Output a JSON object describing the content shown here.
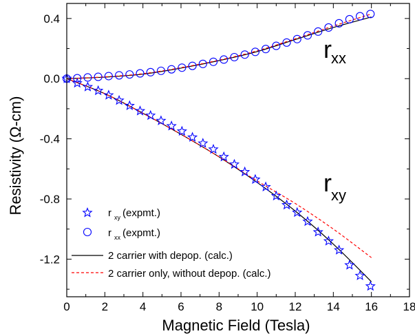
{
  "chart_data": {
    "type": "scatter",
    "xlabel": "Magnetic Field (Tesla)",
    "ylabel": "Resistivity (Ω-cm)",
    "xlim": [
      0,
      18
    ],
    "ylim": [
      -1.45,
      0.5
    ],
    "xticks": [
      "0",
      "2",
      "4",
      "6",
      "8",
      "10",
      "12",
      "14",
      "16",
      "18"
    ],
    "yticks": [
      "0.4",
      "0.0",
      "-0.4",
      "-0.8",
      "-1.2"
    ],
    "grid": false,
    "legend_position": "bottom-left",
    "annotations": [
      {
        "main": "r",
        "sub": "xx"
      },
      {
        "main": "r",
        "sub": "xy"
      }
    ],
    "series": [
      {
        "name_main": "r",
        "name_sub": "xy",
        "name_rest": " (expmt.)",
        "marker": "star",
        "color": "#0000ff",
        "x": [
          0.0,
          0.55,
          1.1,
          1.65,
          2.2,
          2.75,
          3.3,
          3.85,
          4.4,
          4.95,
          5.5,
          6.05,
          6.6,
          7.15,
          7.7,
          8.25,
          8.8,
          9.35,
          9.9,
          10.45,
          11.0,
          11.55,
          12.1,
          12.65,
          13.2,
          13.75,
          14.3,
          14.85,
          15.4,
          15.95
        ],
        "y": [
          0.0,
          -0.03,
          -0.055,
          -0.08,
          -0.11,
          -0.145,
          -0.18,
          -0.215,
          -0.245,
          -0.28,
          -0.315,
          -0.35,
          -0.39,
          -0.43,
          -0.47,
          -0.52,
          -0.57,
          -0.62,
          -0.67,
          -0.72,
          -0.78,
          -0.84,
          -0.89,
          -0.95,
          -1.02,
          -1.08,
          -1.14,
          -1.24,
          -1.31,
          -1.38
        ]
      },
      {
        "name_main": "r",
        "name_sub": "xx",
        "name_rest": " (expmt.)",
        "marker": "circle",
        "color": "#0000ff",
        "x": [
          0.0,
          0.55,
          1.1,
          1.65,
          2.2,
          2.75,
          3.3,
          3.85,
          4.4,
          4.95,
          5.5,
          6.05,
          6.6,
          7.15,
          7.7,
          8.25,
          8.8,
          9.35,
          9.9,
          10.45,
          11.0,
          11.55,
          12.1,
          12.65,
          13.2,
          13.75,
          14.3,
          14.85,
          15.4,
          15.95
        ],
        "y": [
          0.0,
          0.003,
          0.008,
          0.012,
          0.017,
          0.022,
          0.028,
          0.035,
          0.043,
          0.052,
          0.062,
          0.073,
          0.085,
          0.098,
          0.112,
          0.127,
          0.143,
          0.16,
          0.178,
          0.197,
          0.218,
          0.24,
          0.263,
          0.288,
          0.313,
          0.34,
          0.368,
          0.395,
          0.415,
          0.43
        ]
      },
      {
        "name": "2 carrier with depop. (calc.)",
        "line": "solid",
        "color": "#000000",
        "x": [
          0,
          2,
          4,
          6,
          8,
          10,
          12,
          14,
          16
        ],
        "y": [
          0.0,
          -0.1,
          -0.23,
          -0.37,
          -0.52,
          -0.69,
          -0.88,
          -1.1,
          -1.35
        ]
      },
      {
        "name": "2 carrier with depop. (calc.)",
        "line": "solid",
        "color": "#000000",
        "x": [
          0,
          2,
          4,
          6,
          8,
          10,
          12,
          14,
          16
        ],
        "y": [
          0.0,
          0.01,
          0.03,
          0.07,
          0.12,
          0.18,
          0.26,
          0.34,
          0.41
        ]
      },
      {
        "name": "2 carrier only, without depop. (calc.)",
        "line": "dashed",
        "color": "#ff0000",
        "x": [
          0,
          2,
          4,
          6,
          8,
          10,
          12,
          14,
          16
        ],
        "y": [
          0.0,
          -0.1,
          -0.23,
          -0.37,
          -0.52,
          -0.68,
          -0.83,
          -1.0,
          -1.19
        ]
      },
      {
        "name": "2 carrier only, without depop. (calc.)",
        "line": "dashed",
        "color": "#ff0000",
        "x": [
          0,
          2,
          4,
          6,
          8,
          10,
          12,
          14,
          16
        ],
        "y": [
          0.0,
          0.012,
          0.033,
          0.073,
          0.123,
          0.185,
          0.265,
          0.35,
          0.43
        ]
      }
    ]
  }
}
